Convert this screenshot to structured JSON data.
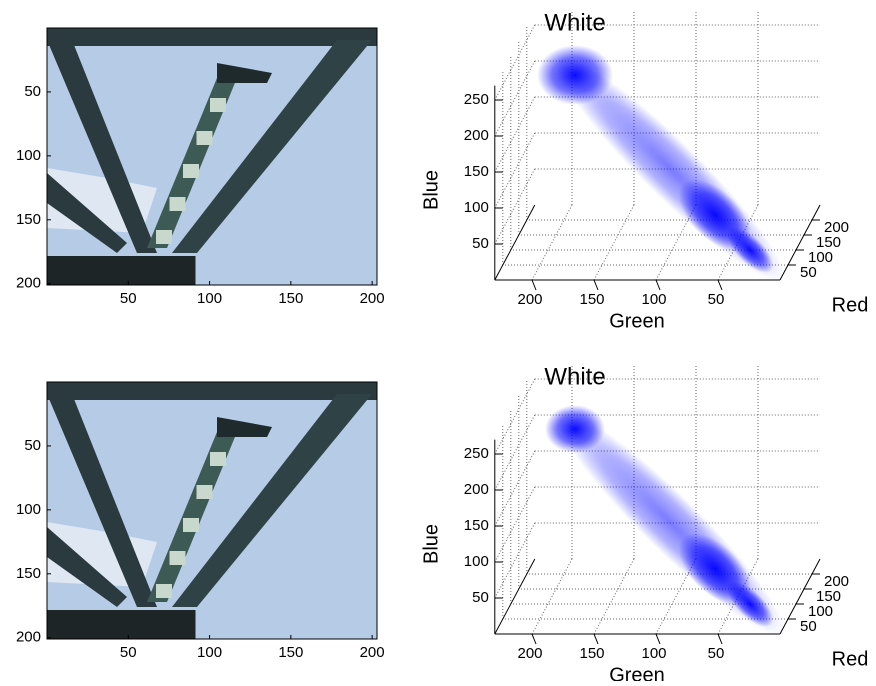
{
  "chart_data": [
    {
      "type": "image",
      "xlim": [
        0,
        203
      ],
      "ylim": [
        0,
        201
      ],
      "xticks": [
        50,
        100,
        150,
        200
      ],
      "yticks": [
        50,
        100,
        150,
        200
      ]
    },
    {
      "type": "scatter3d",
      "title": "White",
      "xlabel": "Green",
      "ylabel": "Red",
      "zlabel": "Blue",
      "xlim": [
        0,
        230
      ],
      "ylim": [
        0,
        250
      ],
      "zlim": [
        0,
        270
      ],
      "xticks": [
        200,
        150,
        100,
        50
      ],
      "yticks": [
        50,
        100,
        150,
        200
      ],
      "zticks": [
        50,
        100,
        150,
        200,
        250
      ]
    },
    {
      "type": "image",
      "xlim": [
        0,
        203
      ],
      "ylim": [
        0,
        201
      ],
      "xticks": [
        50,
        100,
        150,
        200
      ],
      "yticks": [
        50,
        100,
        150,
        200
      ]
    },
    {
      "type": "scatter3d",
      "title": "White",
      "xlabel": "Green",
      "ylabel": "Red",
      "zlabel": "Blue",
      "xlim": [
        0,
        230
      ],
      "ylim": [
        0,
        250
      ],
      "zlim": [
        0,
        270
      ],
      "xticks": [
        200,
        150,
        100,
        50
      ],
      "yticks": [
        50,
        100,
        150,
        200
      ],
      "zticks": [
        50,
        100,
        150,
        200,
        250
      ]
    }
  ]
}
